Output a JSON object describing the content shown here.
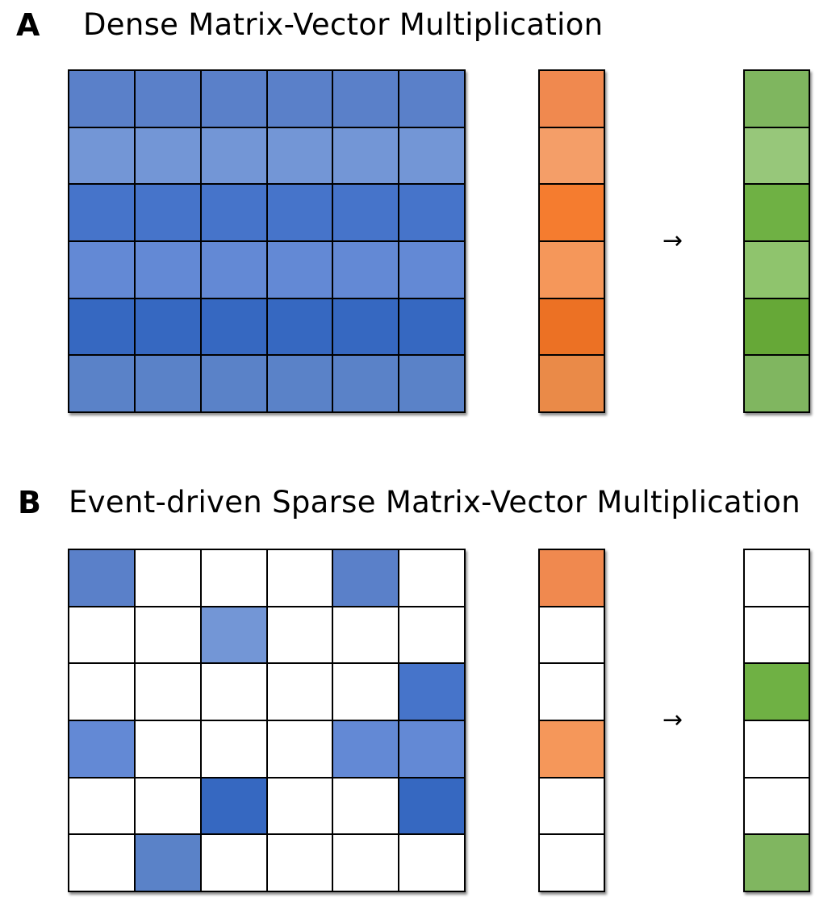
{
  "panel_a": {
    "letter": "A",
    "title": "Dense Matrix-Vector Multiplication",
    "arrow": "→",
    "matrix_row_colors": [
      "#5a80c9",
      "#7396d6",
      "#4674ca",
      "#6389d5",
      "#3668c1",
      "#5a82c8"
    ],
    "input_colors": [
      "#f0894f",
      "#f49e68",
      "#f57c2f",
      "#f5975a",
      "#ec7124",
      "#ea8a48"
    ],
    "output_colors": [
      "#7fb65f",
      "#97c77a",
      "#6fb144",
      "#8fc46d",
      "#66a837",
      "#80b660"
    ]
  },
  "panel_b": {
    "letter": "B",
    "title": "Event-driven Sparse Matrix-Vector Multiplication",
    "arrow": "→",
    "matrix_cells": [
      [
        "#5a80c9",
        "",
        "",
        "",
        "#5a80c9",
        ""
      ],
      [
        "",
        "",
        "#7396d6",
        "",
        "",
        ""
      ],
      [
        "",
        "",
        "",
        "",
        "",
        "#4674ca"
      ],
      [
        "#6389d5",
        "",
        "",
        "",
        "#6389d5",
        "#6389d5"
      ],
      [
        "",
        "",
        "#3668c1",
        "",
        "",
        "#3668c1"
      ],
      [
        "",
        "#5a82c8",
        "",
        "",
        "",
        ""
      ]
    ],
    "input_colors": [
      "#f0894f",
      "",
      "",
      "#f5975a",
      "",
      ""
    ],
    "output_colors": [
      "",
      "",
      "#6fb144",
      "",
      "",
      "#80b660"
    ]
  },
  "colors": {
    "empty_cell": "#ffffff",
    "grid_line": "#000000"
  }
}
